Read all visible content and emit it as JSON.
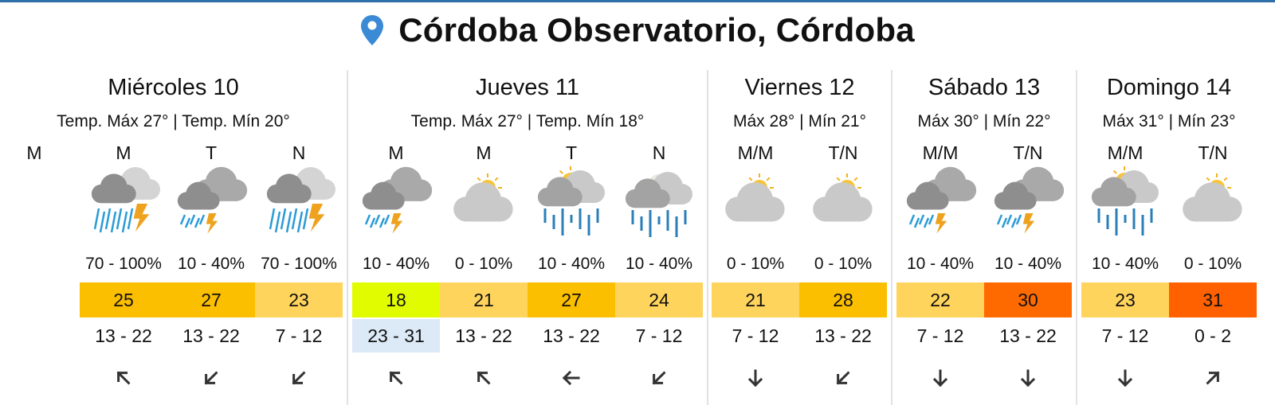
{
  "title": "Córdoba Observatorio, Córdoba",
  "days": [
    {
      "name": "Miércoles 10",
      "summary": "Temp. Máx 27° | Temp. Mín 20°",
      "periods": [
        {
          "label": "M"
        },
        {
          "label": "M",
          "precip": "70 - 100%",
          "temp": 25,
          "temp_color": "#fcbf00",
          "wind": "13 - 22"
        },
        {
          "label": "T",
          "precip": "10 - 40%",
          "temp": 27,
          "temp_color": "#fcbf00",
          "wind": "13 - 22"
        },
        {
          "label": "N",
          "precip": "70 - 100%",
          "temp": 23,
          "temp_color": "#ffd45c",
          "wind": "7 - 12"
        }
      ]
    },
    {
      "name": "Jueves 11",
      "summary": "Temp. Máx 27° | Temp. Mín 18°",
      "periods": [
        {
          "label": "M",
          "precip": "10 - 40%",
          "temp": 18,
          "temp_color": "#e2fc00",
          "wind": "23 - 31",
          "wind_color": "#dce9f6"
        },
        {
          "label": "M",
          "precip": "0 - 10%",
          "temp": 21,
          "temp_color": "#ffd45c",
          "wind": "13 - 22"
        },
        {
          "label": "T",
          "precip": "10 - 40%",
          "temp": 27,
          "temp_color": "#fcbf00",
          "wind": "13 - 22"
        },
        {
          "label": "N",
          "precip": "10 - 40%",
          "temp": 24,
          "temp_color": "#ffd45c",
          "wind": "7 - 12"
        }
      ]
    },
    {
      "name": "Viernes 12",
      "summary": "Máx 28° | Mín 21°",
      "periods": [
        {
          "label": "M/M",
          "precip": "0 - 10%",
          "temp": 21,
          "temp_color": "#ffd45c",
          "wind": "7 - 12"
        },
        {
          "label": "T/N",
          "precip": "0 - 10%",
          "temp": 28,
          "temp_color": "#fcbf00",
          "wind": "13 - 22"
        }
      ]
    },
    {
      "name": "Sábado 13",
      "summary": "Máx 30° | Mín 22°",
      "periods": [
        {
          "label": "M/M",
          "precip": "10 - 40%",
          "temp": 22,
          "temp_color": "#ffd45c",
          "wind": "7 - 12"
        },
        {
          "label": "T/N",
          "precip": "10 - 40%",
          "temp": 30,
          "temp_color": "#ff6a00",
          "wind": "13 - 22"
        }
      ]
    },
    {
      "name": "Domingo 14",
      "summary": "Máx 31° | Mín 23°",
      "periods": [
        {
          "label": "M/M",
          "precip": "10 - 40%",
          "temp": 23,
          "temp_color": "#ffd45c",
          "wind": "7 - 12"
        },
        {
          "label": "T/N",
          "precip": "0 - 10%",
          "temp": 31,
          "temp_color": "#ff6000",
          "wind": "0 - 2"
        }
      ]
    }
  ]
}
